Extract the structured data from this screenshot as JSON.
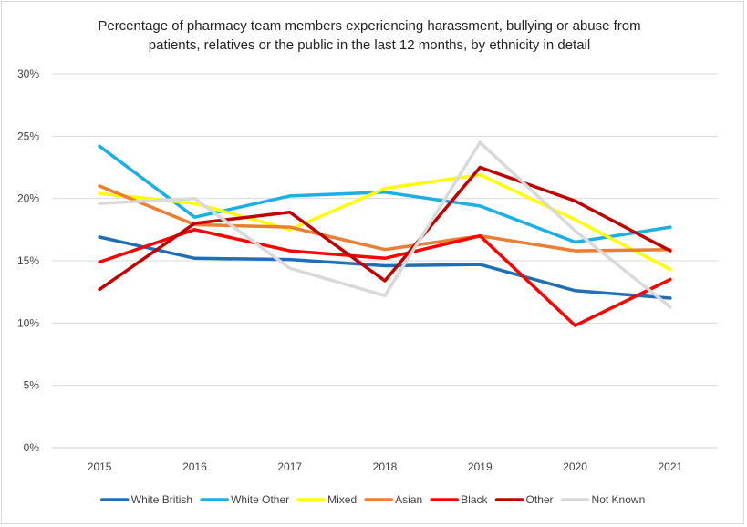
{
  "chart_data": {
    "type": "line",
    "title_lines": [
      "Percentage of pharmacy team members experiencing harassment, bullying or abuse from",
      "patients, relatives or the public in the last 12 months, by ethnicity in detail"
    ],
    "x": [
      "2015",
      "2016",
      "2017",
      "2018",
      "2019",
      "2020",
      "2021"
    ],
    "y_ticks": [
      "0%",
      "5%",
      "10%",
      "15%",
      "20%",
      "25%",
      "30%"
    ],
    "ylim": [
      0,
      30
    ],
    "grid": true,
    "legend_position": "bottom",
    "series": [
      {
        "name": "White British",
        "color": "#1F6FB5",
        "values": [
          16.9,
          15.2,
          15.1,
          14.6,
          14.7,
          12.6,
          12.0
        ]
      },
      {
        "name": "White Other",
        "color": "#1AAFE6",
        "values": [
          24.2,
          18.5,
          20.2,
          20.5,
          19.4,
          16.5,
          17.7
        ]
      },
      {
        "name": "Mixed",
        "color": "#FFFF00",
        "values": [
          20.4,
          19.6,
          17.5,
          20.8,
          21.9,
          18.3,
          14.3
        ]
      },
      {
        "name": "Asian",
        "color": "#ED7D31",
        "values": [
          21.0,
          17.9,
          17.7,
          15.9,
          17.0,
          15.8,
          15.9
        ]
      },
      {
        "name": "Black",
        "color": "#FF0000",
        "values": [
          14.9,
          17.5,
          15.8,
          15.2,
          17.0,
          9.8,
          13.5
        ]
      },
      {
        "name": "Other",
        "color": "#C00000",
        "values": [
          12.7,
          18.0,
          18.9,
          13.4,
          22.5,
          19.8,
          15.8
        ]
      },
      {
        "name": "Not Known",
        "color": "#D9D9D9",
        "values": [
          19.6,
          20.0,
          14.4,
          12.2,
          24.5,
          17.4,
          11.3
        ]
      }
    ]
  }
}
